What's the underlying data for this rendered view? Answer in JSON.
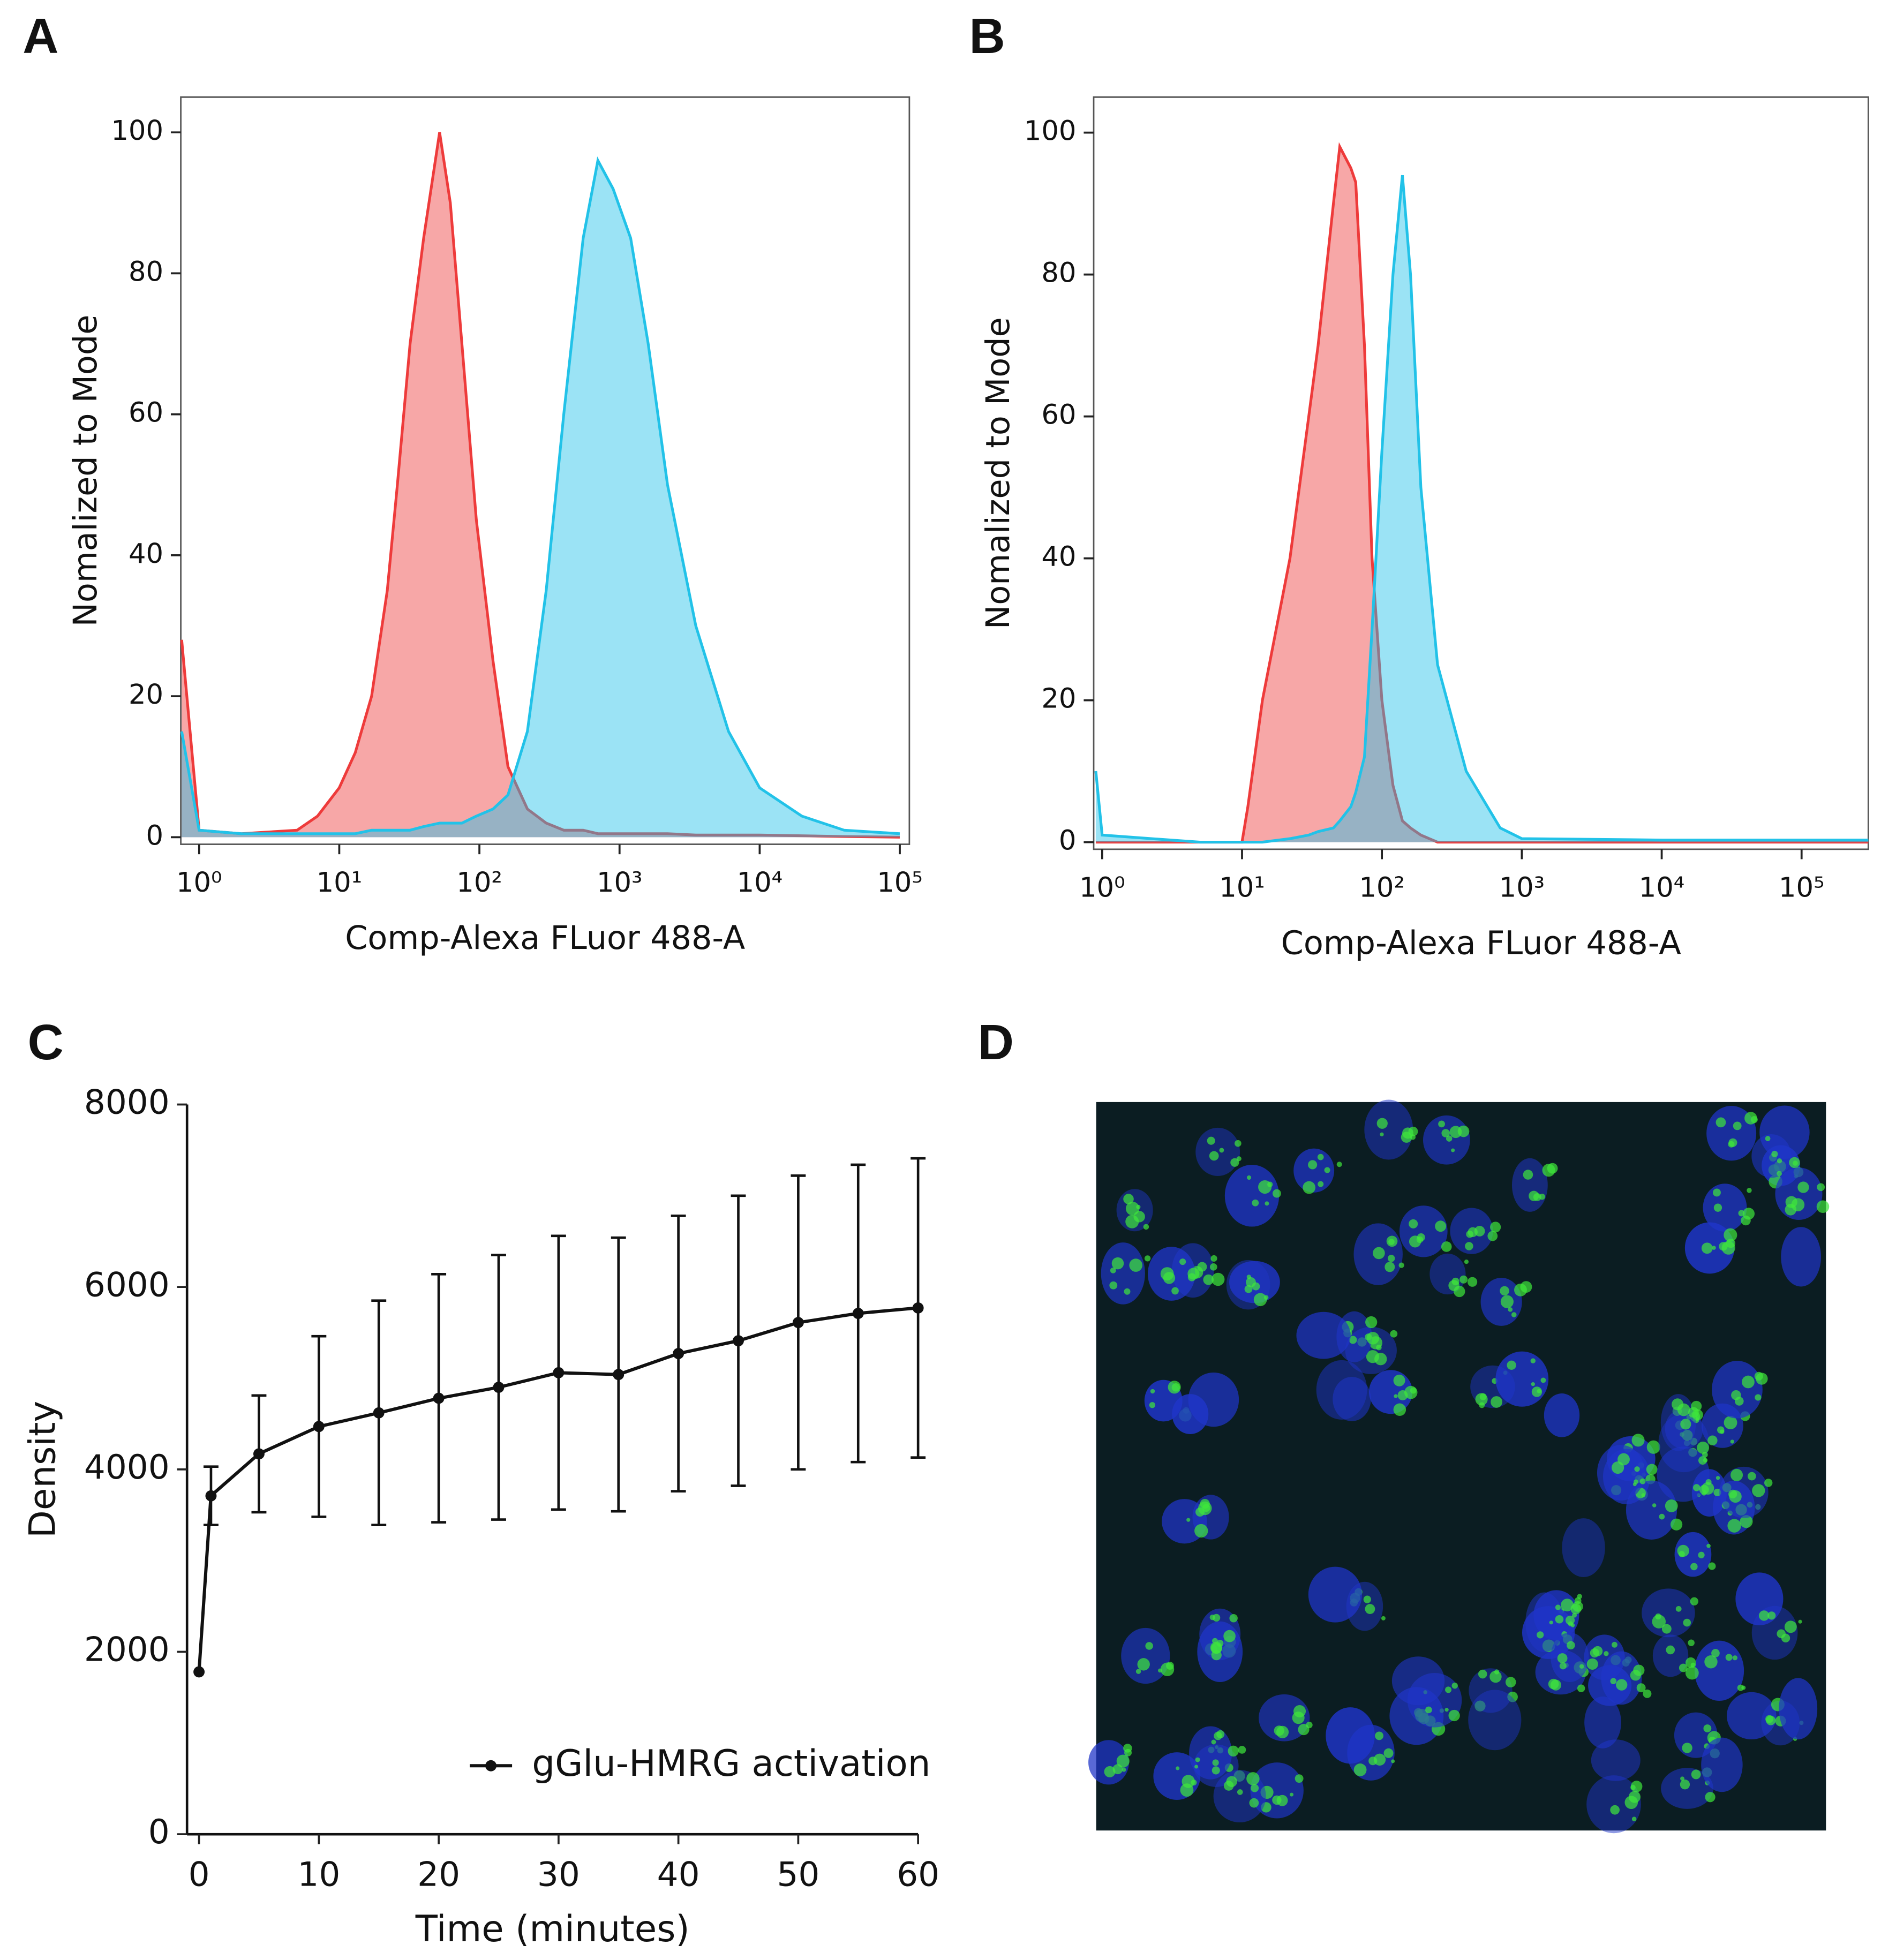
{
  "chart_data": [
    {
      "type": "area",
      "panel": "A",
      "xlabel": "Comp-Alexa FLuor 488-A",
      "ylabel": "Nomalized to Mode",
      "xscale": "log",
      "xlim": [
        0.74,
        117000
      ],
      "ylim": [
        -1,
        105
      ],
      "xticks": [
        {
          "value": 1,
          "label": "10⁰"
        },
        {
          "value": 10,
          "label": "10¹"
        },
        {
          "value": 100,
          "label": "10²"
        },
        {
          "value": 1000,
          "label": "10³"
        },
        {
          "value": 10000,
          "label": "10⁴"
        },
        {
          "value": 100000,
          "label": "10⁵"
        }
      ],
      "yticks": [
        0,
        20,
        40,
        60,
        80,
        100
      ],
      "x": [
        0.75,
        1,
        2,
        5,
        7,
        10,
        13,
        17,
        22,
        26,
        32,
        40,
        52,
        62,
        75,
        95,
        125,
        160,
        220,
        300,
        400,
        550,
        700,
        900,
        1200,
        1600,
        2200,
        3500,
        6000,
        10000,
        20000,
        40000,
        100000
      ],
      "series": [
        {
          "color": "#ee3b3b",
          "values": [
            28,
            1,
            0.5,
            1,
            3,
            7,
            12,
            20,
            35,
            50,
            70,
            85,
            100,
            90,
            70,
            45,
            25,
            10,
            4,
            2,
            1,
            1,
            0.5,
            0.5,
            0.5,
            0.5,
            0.5,
            0.3,
            0.3,
            0.3,
            0.2,
            0.1,
            0
          ]
        },
        {
          "color": "#22c2e8",
          "values": [
            15,
            1,
            0.5,
            0.5,
            0.5,
            0.5,
            0.5,
            1,
            1,
            1,
            1,
            1.5,
            2,
            2,
            2,
            3,
            4,
            6,
            15,
            35,
            60,
            85,
            96,
            92,
            85,
            70,
            50,
            30,
            15,
            7,
            3,
            1,
            0.5
          ]
        }
      ]
    },
    {
      "type": "area",
      "panel": "B",
      "xlabel": "Comp-Alexa FLuor 488-A",
      "ylabel": "Nomalized to Mode",
      "xscale": "log",
      "xlim": [
        0.87,
        300000
      ],
      "ylim": [
        -1,
        105
      ],
      "xticks": [
        {
          "value": 1,
          "label": "10⁰"
        },
        {
          "value": 10,
          "label": "10¹"
        },
        {
          "value": 100,
          "label": "10²"
        },
        {
          "value": 1000,
          "label": "10³"
        },
        {
          "value": 10000,
          "label": "10⁴"
        },
        {
          "value": 100000,
          "label": "10⁵"
        }
      ],
      "yticks": [
        0,
        20,
        40,
        60,
        80,
        100
      ],
      "x": [
        0.9,
        1,
        5,
        10,
        11,
        14,
        22,
        30,
        35,
        45,
        50,
        60,
        65,
        75,
        85,
        100,
        120,
        140,
        160,
        190,
        250,
        400,
        700,
        1000,
        10000,
        100000,
        300000
      ],
      "series": [
        {
          "color": "#ee3b3b",
          "values": [
            0,
            0,
            0,
            0,
            5,
            20,
            40,
            60,
            70,
            90,
            98,
            95,
            93,
            70,
            40,
            20,
            8,
            3,
            2,
            1,
            0,
            0,
            0,
            0,
            0,
            0,
            0
          ]
        },
        {
          "color": "#22c2e8",
          "values": [
            10,
            1,
            0,
            0,
            0,
            0,
            0.5,
            1,
            1.5,
            2,
            3,
            5,
            7,
            12,
            30,
            55,
            80,
            94,
            80,
            50,
            25,
            10,
            2,
            0.5,
            0.3,
            0.3,
            0.3
          ]
        }
      ]
    },
    {
      "type": "line",
      "panel": "C",
      "xlabel": "Time (minutes)",
      "ylabel": "Density",
      "xlim": [
        -1,
        60
      ],
      "ylim": [
        0,
        8000
      ],
      "xticks": [
        0,
        10,
        20,
        30,
        40,
        50,
        60
      ],
      "yticks": [
        0,
        2000,
        4000,
        6000,
        8000
      ],
      "legend": "lower right",
      "x": [
        0,
        1,
        5,
        10,
        15,
        20,
        25,
        30,
        35,
        40,
        45,
        50,
        55,
        60
      ],
      "series": [
        {
          "name": "gGlu-HMRG activation",
          "color": "#111111",
          "values": [
            1780,
            3710,
            4170,
            4470,
            4620,
            4780,
            4900,
            5060,
            5040,
            5270,
            5410,
            5610,
            5710,
            5770
          ],
          "errors": [
            0,
            320,
            640,
            990,
            1230,
            1360,
            1450,
            1500,
            1500,
            1510,
            1590,
            1610,
            1630,
            1640
          ]
        }
      ]
    }
  ],
  "image_panel": {
    "panel": "D"
  }
}
